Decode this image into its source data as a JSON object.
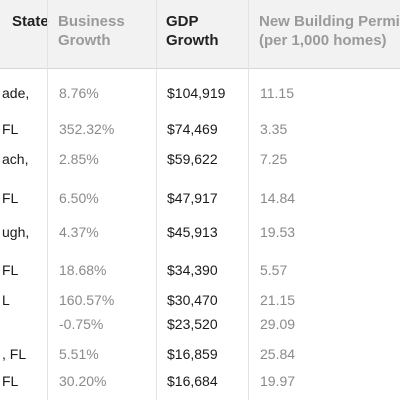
{
  "header": {
    "state": "State",
    "business_growth": "Business\nGrowth",
    "gdp_growth": "GDP\nGrowth",
    "permits": "New Building Permits\n(per 1,000 homes)"
  },
  "rows": [
    {
      "state": "ade,",
      "business": "8.76%",
      "gdp": "$104,919",
      "permits": "11.15"
    },
    {
      "state": "FL",
      "business": "352.32%",
      "gdp": "$74,469",
      "permits": "3.35"
    },
    {
      "state": "ach,",
      "business": "2.85%",
      "gdp": "$59,622",
      "permits": "7.25"
    },
    {
      "state": "FL",
      "business": "6.50%",
      "gdp": "$47,917",
      "permits": "14.84"
    },
    {
      "state": "ugh,",
      "business": "4.37%",
      "gdp": "$45,913",
      "permits": "19.53"
    },
    {
      "state": "FL",
      "business": "18.68%",
      "gdp": "$34,390",
      "permits": "5.57"
    },
    {
      "state": "L",
      "business": "160.57%",
      "gdp": "$30,470",
      "permits": "21.15"
    },
    {
      "state": "",
      "business": "-0.75%",
      "gdp": "$23,520",
      "permits": "29.09"
    },
    {
      "state": ", FL",
      "business": "5.51%",
      "gdp": "$16,859",
      "permits": "25.84"
    },
    {
      "state": "FL",
      "business": "30.20%",
      "gdp": "$16,684",
      "permits": "19.97"
    }
  ]
}
